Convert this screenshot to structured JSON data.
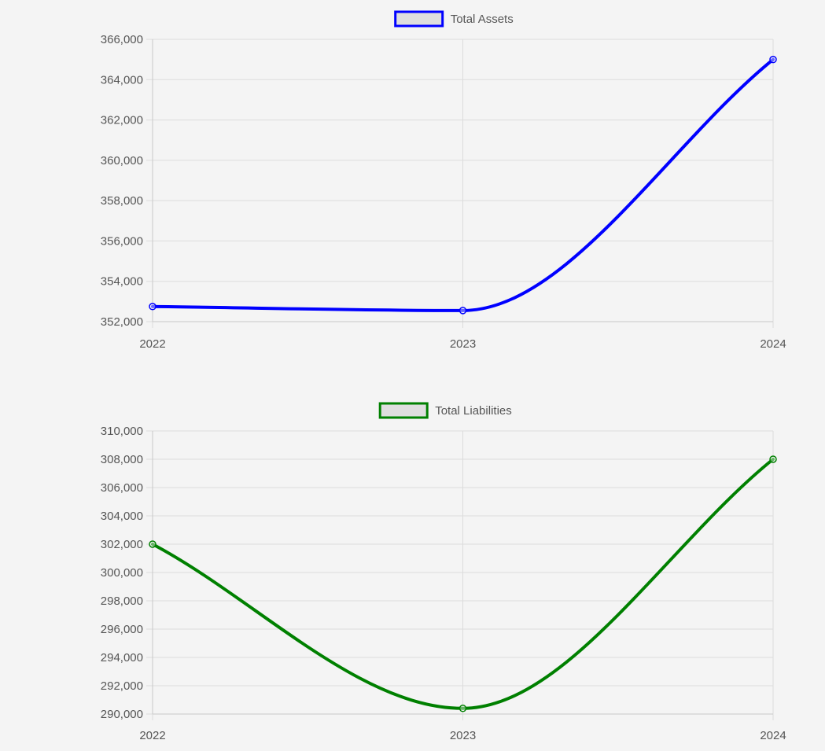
{
  "chart_data": [
    {
      "type": "line",
      "categories": [
        "2022",
        "2023",
        "2024"
      ],
      "series": [
        {
          "name": "Total Assets",
          "values": [
            352750,
            352550,
            365000
          ],
          "color": "#0000ff"
        }
      ],
      "ylim": [
        352000,
        366000
      ],
      "yticks": [
        "366,000",
        "364,000",
        "362,000",
        "360,000",
        "358,000",
        "356,000",
        "354,000",
        "352,000"
      ],
      "yticks_values": [
        366000,
        364000,
        362000,
        360000,
        358000,
        356000,
        354000,
        352000
      ],
      "legend_position": "top",
      "grid": true,
      "legend_fill": "#dedede"
    },
    {
      "type": "line",
      "categories": [
        "2022",
        "2023",
        "2024"
      ],
      "series": [
        {
          "name": "Total Liabilities",
          "values": [
            302000,
            290400,
            308000
          ],
          "color": "#008000"
        }
      ],
      "ylim": [
        290000,
        310000
      ],
      "yticks": [
        "310,000",
        "308,000",
        "306,000",
        "304,000",
        "302,000",
        "300,000",
        "298,000",
        "296,000",
        "294,000",
        "292,000",
        "290,000"
      ],
      "yticks_values": [
        310000,
        308000,
        306000,
        304000,
        302000,
        300000,
        298000,
        296000,
        294000,
        292000,
        290000
      ],
      "legend_position": "top",
      "grid": true,
      "legend_fill": "#dedede"
    }
  ]
}
